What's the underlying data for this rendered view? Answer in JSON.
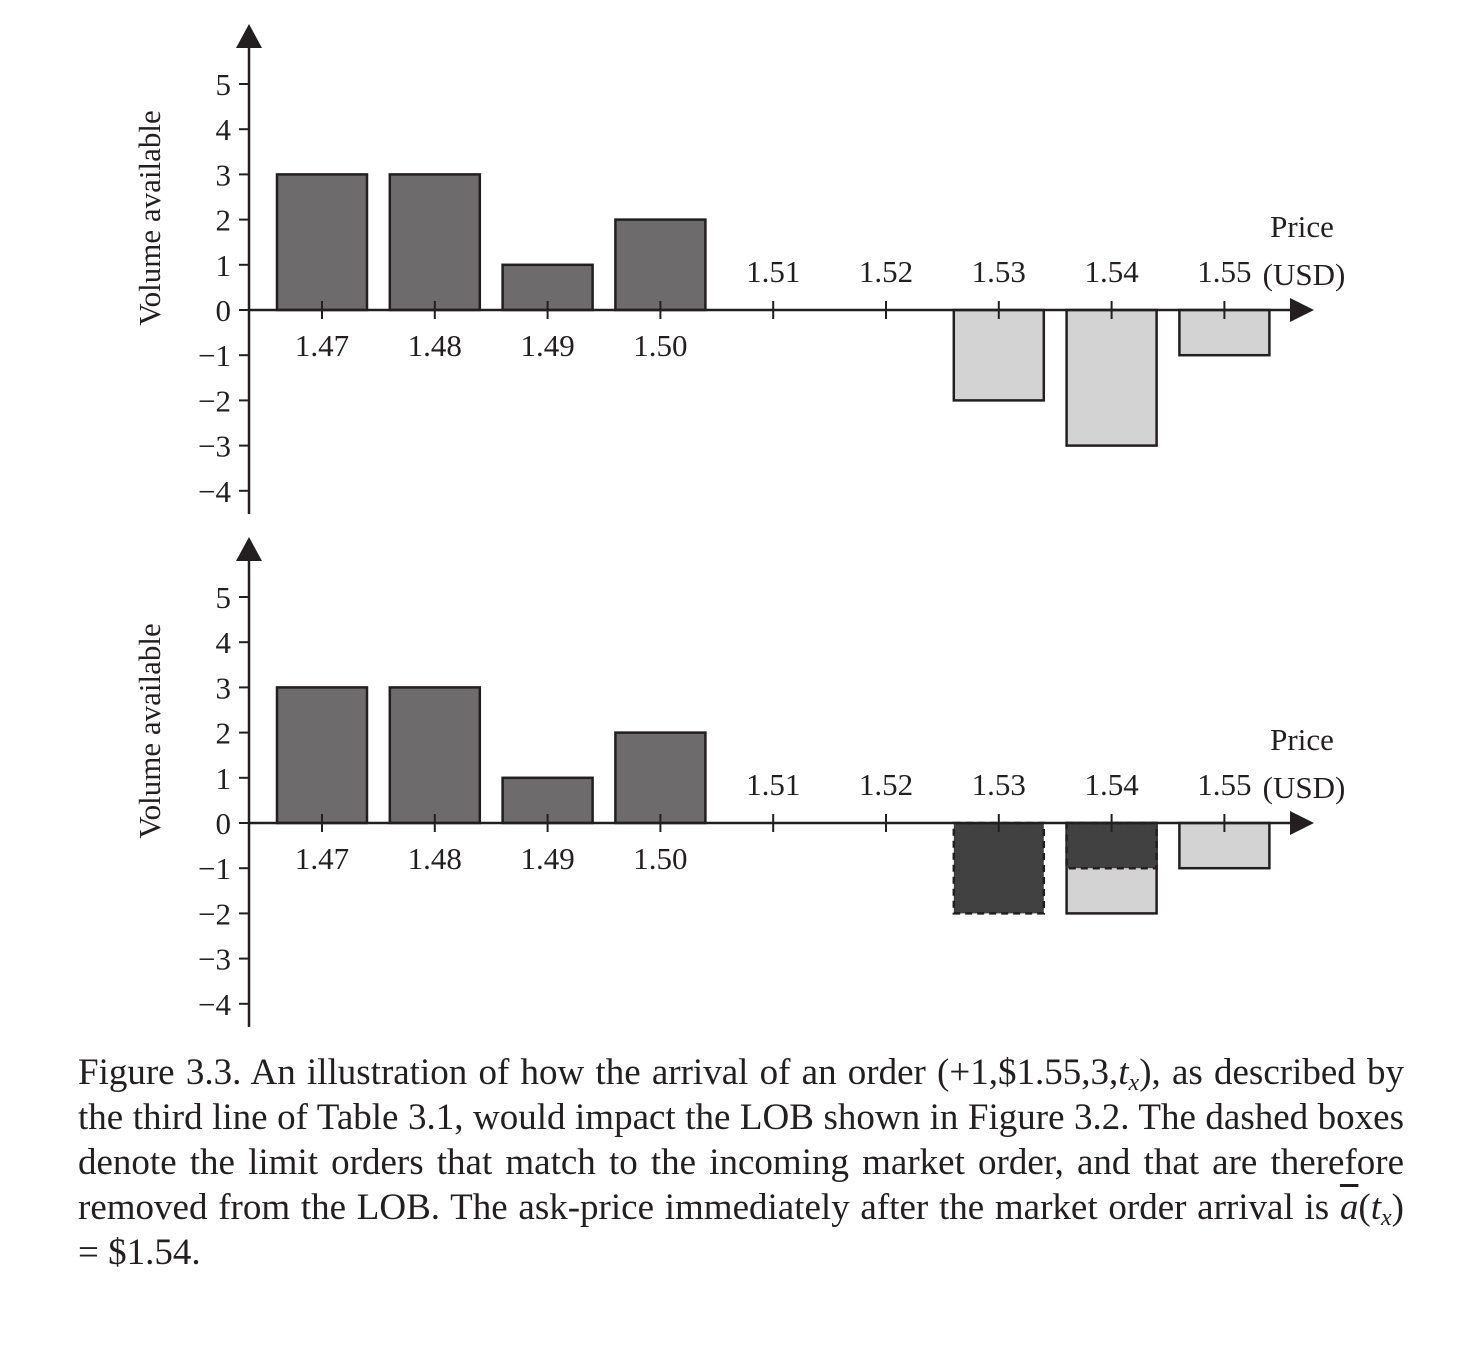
{
  "chart_data": [
    {
      "type": "bar",
      "panel": "top",
      "ylabel": "Volume available",
      "xlabel_line1": "Price",
      "xlabel_line2": "(USD)",
      "ylim": [
        -4,
        5
      ],
      "yticks": [
        5,
        4,
        3,
        2,
        1,
        0,
        -1,
        -2,
        -3,
        -4
      ],
      "ytick_labels": [
        "5",
        "4",
        "3",
        "2",
        "1",
        "0",
        "−1",
        "−2",
        "−3",
        "−4"
      ],
      "categories": [
        "1.47",
        "1.48",
        "1.49",
        "1.50",
        "1.51",
        "1.52",
        "1.53",
        "1.54",
        "1.55"
      ],
      "series": [
        {
          "values": [
            3,
            3,
            1,
            2,
            0,
            0,
            0,
            0,
            0
          ],
          "color": "#6d6b6c"
        },
        {
          "values": [
            0,
            0,
            0,
            0,
            0,
            0,
            -2,
            -3,
            -1
          ],
          "color": "#d3d3d3"
        }
      ],
      "removed": []
    },
    {
      "type": "bar",
      "panel": "bottom",
      "ylabel": "Volume available",
      "xlabel_line1": "Price",
      "xlabel_line2": "(USD)",
      "ylim": [
        -4,
        5
      ],
      "yticks": [
        5,
        4,
        3,
        2,
        1,
        0,
        -1,
        -2,
        -3,
        -4
      ],
      "ytick_labels": [
        "5",
        "4",
        "3",
        "2",
        "1",
        "0",
        "−1",
        "−2",
        "−3",
        "−4"
      ],
      "categories": [
        "1.47",
        "1.48",
        "1.49",
        "1.50",
        "1.51",
        "1.52",
        "1.53",
        "1.54",
        "1.55"
      ],
      "series": [
        {
          "values": [
            3,
            3,
            1,
            2,
            0,
            0,
            0,
            0,
            0
          ],
          "color": "#6d6b6c"
        },
        {
          "values": [
            0,
            0,
            0,
            0,
            0,
            0,
            0,
            -2,
            -1
          ],
          "color": "#d3d3d3"
        }
      ],
      "removed": [
        {
          "category": "1.53",
          "from": 0,
          "to": -2,
          "color": "#414141"
        },
        {
          "category": "1.54",
          "from": 0,
          "to": -1,
          "color": "#414141"
        }
      ]
    }
  ],
  "caption": {
    "part1": "Figure 3.3. An illustration of how the arrival of an order (+1,$1.55,3,",
    "tvar": "t",
    "tsub": "x",
    "part2": "), as described by the third line of Table 3.1, would impact the LOB shown in Figure 3.2. The dashed boxes denote the limit orders that match to the incoming market order, and that are therefore removed from the LOB. The ask-price immediately after the market order arrival is ",
    "abar": "a",
    "paren_open": "(",
    "tvar2": "t",
    "tsub2": "x",
    "part3": ") = $1.54."
  }
}
